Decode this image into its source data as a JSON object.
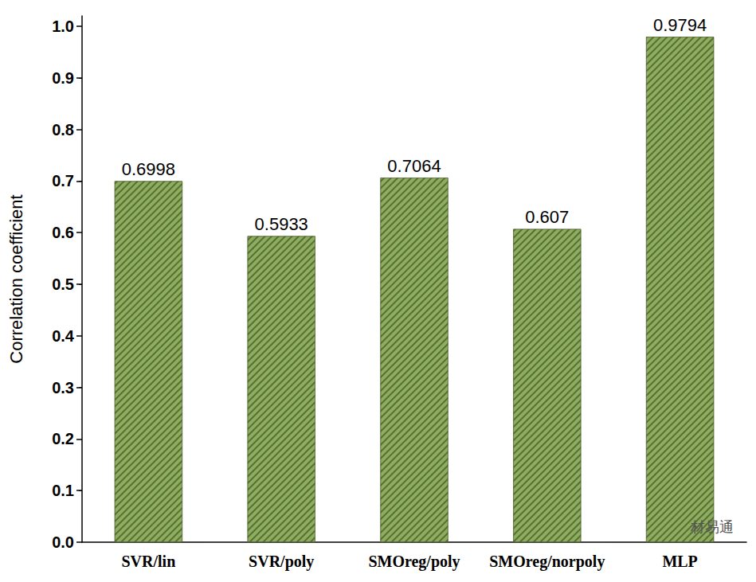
{
  "chart_data": {
    "type": "bar",
    "y_label": "Correlation coefficient",
    "categories": [
      "SVR/lin",
      "SVR/poly",
      "SMOreg/poly",
      "SMOreg/norpoly",
      "MLP"
    ],
    "values": [
      0.6998,
      0.5933,
      0.7064,
      0.607,
      0.9794
    ],
    "color": "#8fad5e",
    "ylim": [
      0,
      1.02
    ],
    "yticks": [
      {
        "value": 0,
        "label": "0.0"
      },
      0.1,
      0.2,
      0.3,
      0.4,
      0.5,
      0.6,
      0.7,
      0.8,
      0.9,
      {
        "value": 1,
        "label": "1.0"
      }
    ],
    "grid": false,
    "data_labels": true,
    "annotation": "材易通"
  }
}
